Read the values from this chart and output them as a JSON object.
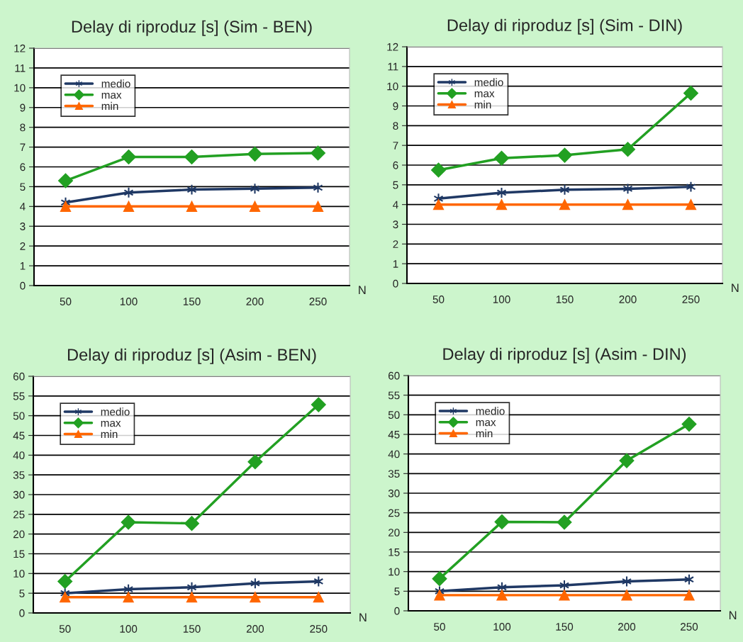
{
  "chart_data": [
    {
      "type": "line",
      "title": "Delay di riproduz [s] (Sim - BEN)",
      "xlabel": "N",
      "categories": [
        "50",
        "100",
        "150",
        "200",
        "250"
      ],
      "ylim": [
        0,
        12
      ],
      "yticks": [
        0,
        1,
        2,
        3,
        4,
        5,
        6,
        7,
        8,
        9,
        10,
        11,
        12
      ],
      "grid": "y",
      "legend": "top left",
      "series": [
        {
          "name": "medio",
          "color": "#1f3864",
          "marker": "cross",
          "values": [
            4.2,
            4.7,
            4.85,
            4.9,
            4.95
          ]
        },
        {
          "name": "max",
          "color": "#22a022",
          "marker": "diamond",
          "values": [
            5.3,
            6.5,
            6.5,
            6.65,
            6.7
          ]
        },
        {
          "name": "min",
          "color": "#ff6600",
          "marker": "triangle",
          "values": [
            4,
            4,
            4,
            4,
            4
          ]
        }
      ]
    },
    {
      "type": "line",
      "title": "Delay di riproduz [s] (Sim - DIN)",
      "xlabel": "N",
      "categories": [
        "50",
        "100",
        "150",
        "200",
        "250"
      ],
      "ylim": [
        0,
        12
      ],
      "yticks": [
        0,
        1,
        2,
        3,
        4,
        5,
        6,
        7,
        8,
        9,
        10,
        11,
        12
      ],
      "grid": "y",
      "legend": "top left",
      "series": [
        {
          "name": "medio",
          "color": "#1f3864",
          "marker": "cross",
          "values": [
            4.3,
            4.6,
            4.75,
            4.8,
            4.9
          ]
        },
        {
          "name": "max",
          "color": "#22a022",
          "marker": "diamond",
          "values": [
            5.75,
            6.35,
            6.5,
            6.8,
            9.65
          ]
        },
        {
          "name": "min",
          "color": "#ff6600",
          "marker": "triangle",
          "values": [
            4,
            4,
            4,
            4,
            4
          ]
        }
      ]
    },
    {
      "type": "line",
      "title": "Delay di riproduz [s] (Asim - BEN)",
      "xlabel": "N",
      "categories": [
        "50",
        "100",
        "150",
        "200",
        "250"
      ],
      "ylim": [
        0,
        60
      ],
      "yticks": [
        0,
        5,
        10,
        15,
        20,
        25,
        30,
        35,
        40,
        45,
        50,
        55,
        60
      ],
      "grid": "y",
      "legend": "top left",
      "series": [
        {
          "name": "medio",
          "color": "#1f3864",
          "marker": "cross",
          "values": [
            5,
            6,
            6.5,
            7.5,
            8
          ]
        },
        {
          "name": "max",
          "color": "#22a022",
          "marker": "diamond",
          "values": [
            8,
            23,
            22.7,
            38.3,
            52.8
          ]
        },
        {
          "name": "min",
          "color": "#ff6600",
          "marker": "triangle",
          "values": [
            4,
            4,
            4,
            4,
            4
          ]
        }
      ]
    },
    {
      "type": "line",
      "title": "Delay di riproduz [s] (Asim - DIN)",
      "xlabel": "N",
      "categories": [
        "50",
        "100",
        "150",
        "200",
        "250"
      ],
      "ylim": [
        0,
        60
      ],
      "yticks": [
        0,
        5,
        10,
        15,
        20,
        25,
        30,
        35,
        40,
        45,
        50,
        55,
        60
      ],
      "grid": "y",
      "legend": "top left",
      "series": [
        {
          "name": "medio",
          "color": "#1f3864",
          "marker": "cross",
          "values": [
            5,
            6,
            6.5,
            7.5,
            8
          ]
        },
        {
          "name": "max",
          "color": "#22a022",
          "marker": "diamond",
          "values": [
            8.2,
            22.7,
            22.6,
            38.3,
            47.6
          ]
        },
        {
          "name": "min",
          "color": "#ff6600",
          "marker": "triangle",
          "values": [
            4,
            4,
            4,
            4,
            4
          ]
        }
      ]
    }
  ]
}
